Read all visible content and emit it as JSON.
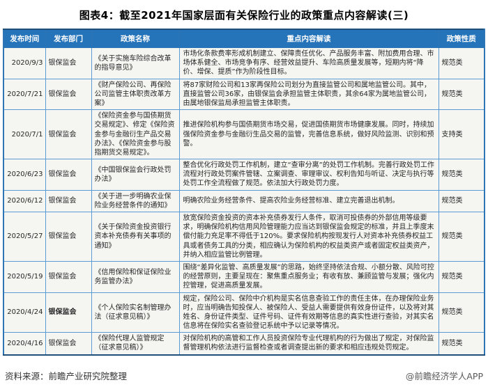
{
  "title": "图表4：截至2021年国家层面有关保险行业的政策重点内容解读(三)",
  "table": {
    "headers": [
      "发布时间",
      "发布部门",
      "政策名称",
      "重点内容解读",
      "政策性质"
    ],
    "rows": [
      {
        "date": "2020/9/3",
        "department": "银保监会",
        "department_bold": false,
        "policy_name": "《关于实施车险综合改革的指导意见》",
        "content": "市场化条款费率形成机制建立、保障责任优化、产品服务丰富、附加费用合理、市场体系健全、市场竞争有序、经营效益提升、车险高质量发展等，短期内将“降价、增保、提质”作为阶段性目标。",
        "nature": "规范类"
      },
      {
        "date": "2020/7/21",
        "department": "银保监会",
        "department_bold": false,
        "policy_name": "《财产保险公司、再保险公司监管主体职责改革方案》",
        "content": "将87家财险公司和13家再保险公司划分为直接监管公司和属地监管公司。其中，直接监管公司36家，由银保监会承担监管主体职责，其余64家为属地监管公司，由属地银保监局承担监管主体职责。",
        "nature": "规范类"
      },
      {
        "date": "2020/7/1",
        "department": "银保监会",
        "department_bold": false,
        "policy_name": "《保险资金参与国债期货交易规定》、修定《保险资金参与金融衍生产品交易办法》、《保险资金参与股指期货交易规定》。",
        "content": "推进保险机构参与国债期货市场交易，促进国债期货市场健康发展。同时，持续加强保险资金参与金融衍生品交易的监管，完善信息系统，做好风险监测、识别和预警。",
        "nature": "支持类"
      },
      {
        "date": "2020/6/23",
        "department": "银保监会",
        "department_bold": false,
        "policy_name": "《中国银保监会行政处罚办法》",
        "content": "整合优化行政处罚工作机制，建立“查审分离”的处罚工作机制。完善行政处罚工作流程对行政处罚案件管辖、立案调查、审理审议、权利告知与听证、决定与执行等处罚工作全流程做了规范。依法加大行政处罚力度。",
        "nature": "规范类"
      },
      {
        "date": "2020/6/12",
        "department": "银保监会",
        "department_bold": false,
        "policy_name": "《关于进一步明确农业保险业务经营条件的通知》",
        "content": "明确农险业务经营条件、提高农险业务经营标准、建立完善退出机制。",
        "nature": "规范类"
      },
      {
        "date": "2020/5/27",
        "department": "银保监会",
        "department_bold": false,
        "policy_name": "《关于保险资金投资银行资本补充债券有关事项的通知》",
        "content": "放宽保险资金投资的资本补充债券发行人条件，取消可投债券的外部信用等级要求，明确保险机构信用风险管理能力应当达到银保监会规定的标准，并且上季度末偿付能力充足率不得低于120%。要求保险机构按现发行人对资本补充债券权益工具或者债务工具的分类，相应确认为保险机构的权益类资产或者固定权益类资产，并纳入相应监管比例管理。",
        "nature": "规范类"
      },
      {
        "date": "2020/5/19",
        "department": "银保监会",
        "department_bold": false,
        "policy_name": "《信用保险和保证保险业务监管办法》",
        "content": "围绕“差异化监管、高质量发展”的思路，始终坚持依法合规、小额分散、风险可控的经营原则，主要呈现在：聚焦重点服务业；有收有放、兼顾监管与发展；强化内控管理，促进高质量发展。",
        "nature": "规范类"
      },
      {
        "date": "2020/4/24",
        "department": "银保监会",
        "department_bold": true,
        "policy_name": "《个人保险实名制管理办法（征求意见稿）》",
        "content": "规定，保险公司、保险中介机构是实名信息查验工作的责任主体，在办理保险业务时，应当明确告知投保人、被保险人、受益人需要提供有效身份证件，以及将对其姓名、身份证件类型、证件号码、证件有效期等信息的真实性进行查验，对其实名信息将在保险实名查验登记系统中予以记录等情况。",
        "nature": "规范类"
      },
      {
        "date": "2020/4/16",
        "department": "银保监会",
        "department_bold": false,
        "policy_name": "《保险代理人监管规定（征求意见稿）》",
        "content": "对保险机构的高管和工作人员投资保险专业代理机构的行为做出了规定，对保险监督管理机构依法进行监督检查或者调查提出新的要求和相应违规处罚规定。",
        "nature": "规范类"
      }
    ]
  },
  "footer": {
    "source": "资料来源：前瞻产业研究院整理",
    "credit": "@前瞻经济学人APP"
  },
  "watermarks": {
    "brand": "前瞻产业研究院",
    "brand_vertical": "前瞻产业研究院"
  },
  "colors": {
    "header_bg": "#2573b9",
    "border_inner": "#5b9bd5",
    "border_outer": "#1f4e79",
    "cell_bg": "#f5f5f2"
  }
}
